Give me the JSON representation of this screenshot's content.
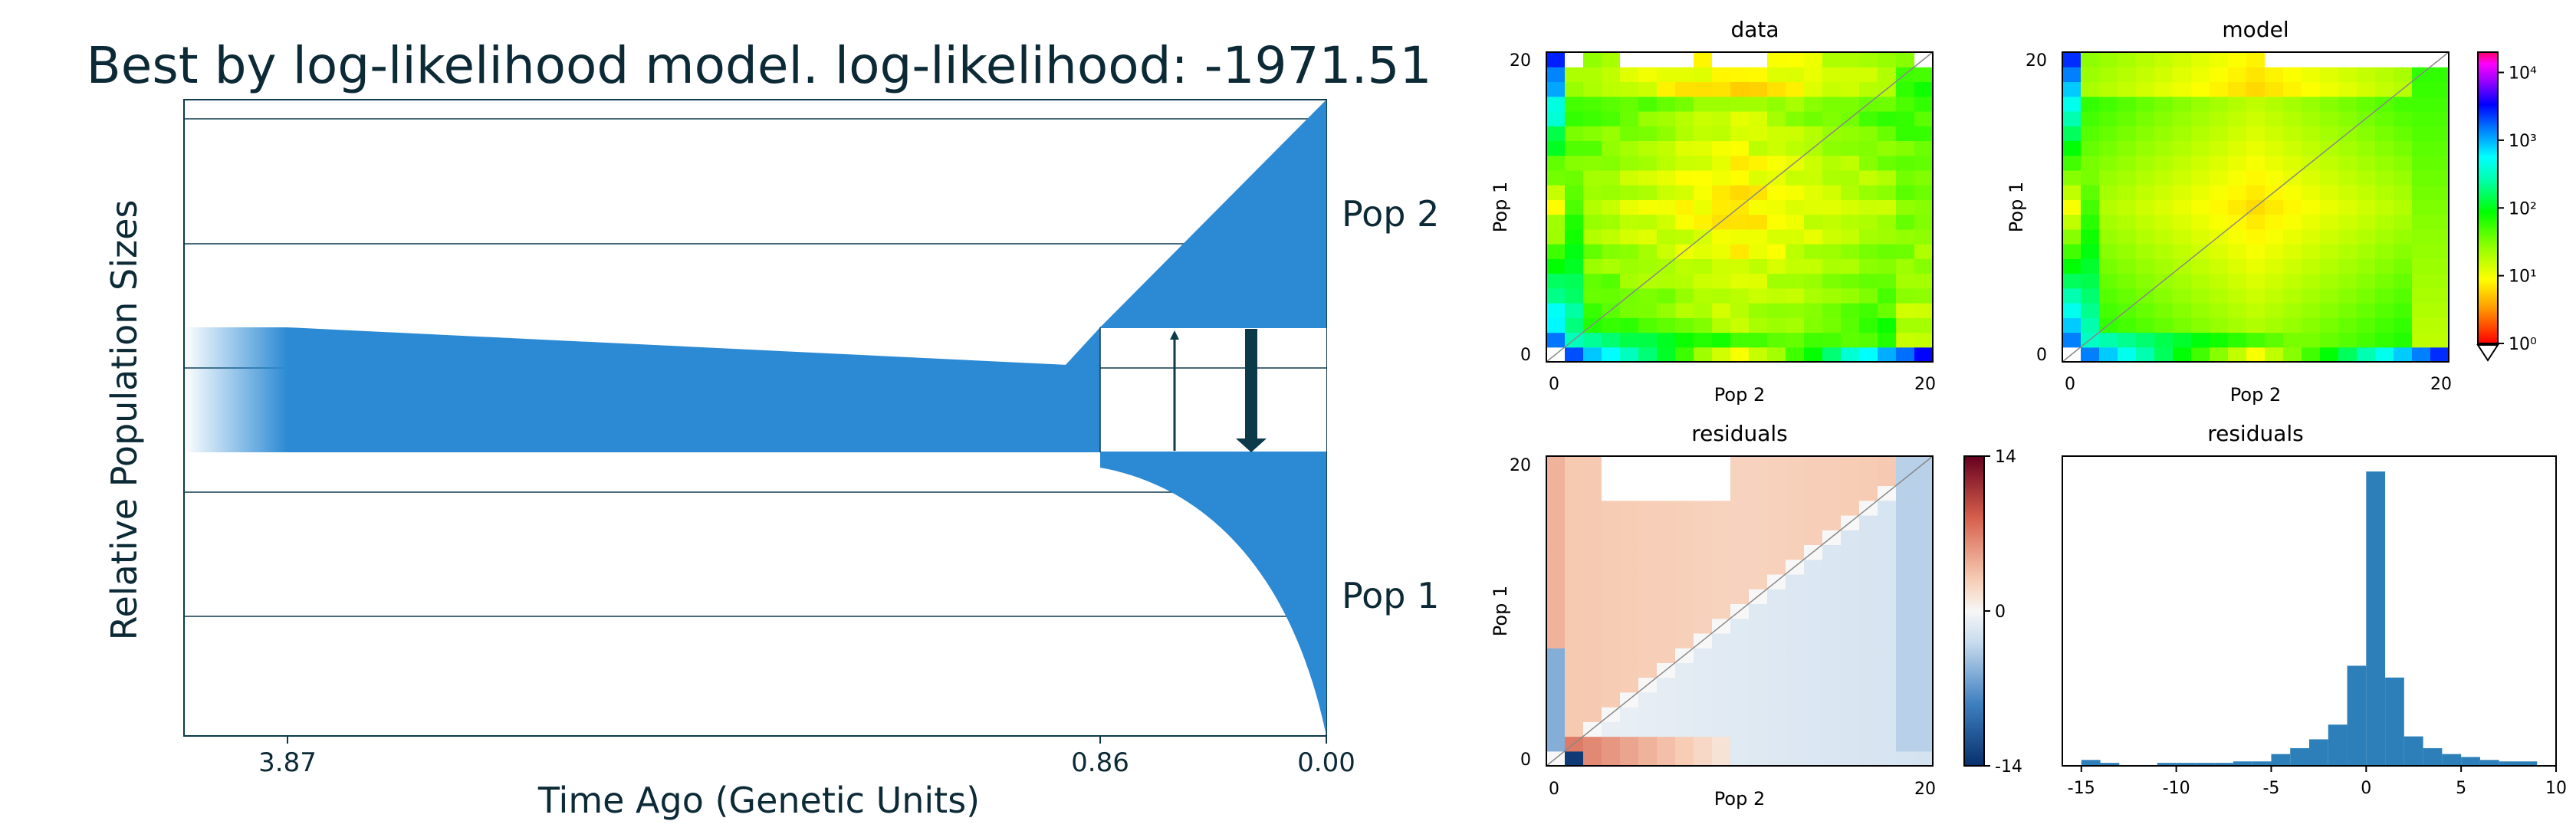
{
  "chart_data": [
    {
      "type": "area",
      "title": "Best by log-likelihood model. log-likelihood: -1971.51",
      "xlabel": "Time Ago (Genetic Units)",
      "ylabel": "Relative Population Sizes",
      "xticks": [
        "3.87",
        "0.86",
        "0.00"
      ],
      "time_points": [
        3.87,
        0.86,
        0.0
      ],
      "populations": [
        {
          "name": "Pop 2",
          "split_time": 0.86,
          "size_at_split": 0.05,
          "size_at_present": 1.0
        },
        {
          "name": "Pop 1",
          "split_time": 0.86,
          "size_at_split": 0.05,
          "size_at_present": 1.0
        }
      ],
      "ancestral_size": {
        "at_3.87": 1.0,
        "at_0.86": 0.7
      },
      "migration": [
        {
          "from": "Pop 1",
          "to": "Pop 2",
          "strength": "weak"
        },
        {
          "from": "Pop 2",
          "to": "Pop 1",
          "strength": "strong"
        }
      ],
      "colors": {
        "population": "#2c8ad4",
        "frame": "#0c3a4a",
        "arrow": "#0c3a4a",
        "background": "#ffffff"
      }
    },
    {
      "type": "heatmap",
      "title": "data",
      "xlabel": "Pop 2",
      "ylabel": "Pop 1",
      "x_ticks": [
        "0",
        "20"
      ],
      "y_ticks": [
        "0",
        "20"
      ],
      "n": 20,
      "scale": "log"
    },
    {
      "type": "heatmap",
      "title": "model",
      "xlabel": "Pop 2",
      "ylabel": "Pop 1",
      "x_ticks": [
        "0",
        "20"
      ],
      "y_ticks": [
        "0",
        "20"
      ],
      "n": 20,
      "scale": "log",
      "colorbar": {
        "ticks": [
          "10⁴",
          "10³",
          "10²",
          "10¹",
          "10⁰"
        ],
        "values": [
          10000,
          1000,
          100,
          10,
          1
        ]
      }
    },
    {
      "type": "heatmap",
      "title": "residuals",
      "xlabel": "Pop 2",
      "ylabel": "Pop 1",
      "x_ticks": [
        "0",
        "20"
      ],
      "y_ticks": [
        "0",
        "20"
      ],
      "n": 20,
      "colorbar": {
        "ticks": [
          "14",
          "0",
          "-14"
        ],
        "range": [
          -14,
          14
        ]
      }
    },
    {
      "type": "bar",
      "title": "residuals",
      "x_ticks": [
        "-15",
        "-10",
        "-5",
        "0",
        "5",
        "10"
      ],
      "xlim": [
        -16,
        10
      ],
      "bin_width": 1,
      "bins": [
        {
          "x0": -15,
          "x1": -14,
          "count": 0.02
        },
        {
          "x0": -14,
          "x1": -13,
          "count": 0.01
        },
        {
          "x0": -11,
          "x1": -10,
          "count": 0.01
        },
        {
          "x0": -10,
          "x1": -9,
          "count": 0.01
        },
        {
          "x0": -9,
          "x1": -8,
          "count": 0.01
        },
        {
          "x0": -8,
          "x1": -7,
          "count": 0.01
        },
        {
          "x0": -7,
          "x1": -6,
          "count": 0.015
        },
        {
          "x0": -6,
          "x1": -5,
          "count": 0.015
        },
        {
          "x0": -5,
          "x1": -4,
          "count": 0.04
        },
        {
          "x0": -4,
          "x1": -3,
          "count": 0.06
        },
        {
          "x0": -3,
          "x1": -2,
          "count": 0.09
        },
        {
          "x0": -2,
          "x1": -1,
          "count": 0.14
        },
        {
          "x0": -1,
          "x1": 0,
          "count": 0.34
        },
        {
          "x0": 0,
          "x1": 1,
          "count": 1.0
        },
        {
          "x0": 1,
          "x1": 2,
          "count": 0.3
        },
        {
          "x0": 2,
          "x1": 3,
          "count": 0.1
        },
        {
          "x0": 3,
          "x1": 4,
          "count": 0.06
        },
        {
          "x0": 4,
          "x1": 5,
          "count": 0.04
        },
        {
          "x0": 5,
          "x1": 6,
          "count": 0.03
        },
        {
          "x0": 6,
          "x1": 7,
          "count": 0.02
        },
        {
          "x0": 7,
          "x1": 8,
          "count": 0.015
        },
        {
          "x0": 8,
          "x1": 9,
          "count": 0.015
        }
      ],
      "color": "#2c7fb8"
    }
  ]
}
